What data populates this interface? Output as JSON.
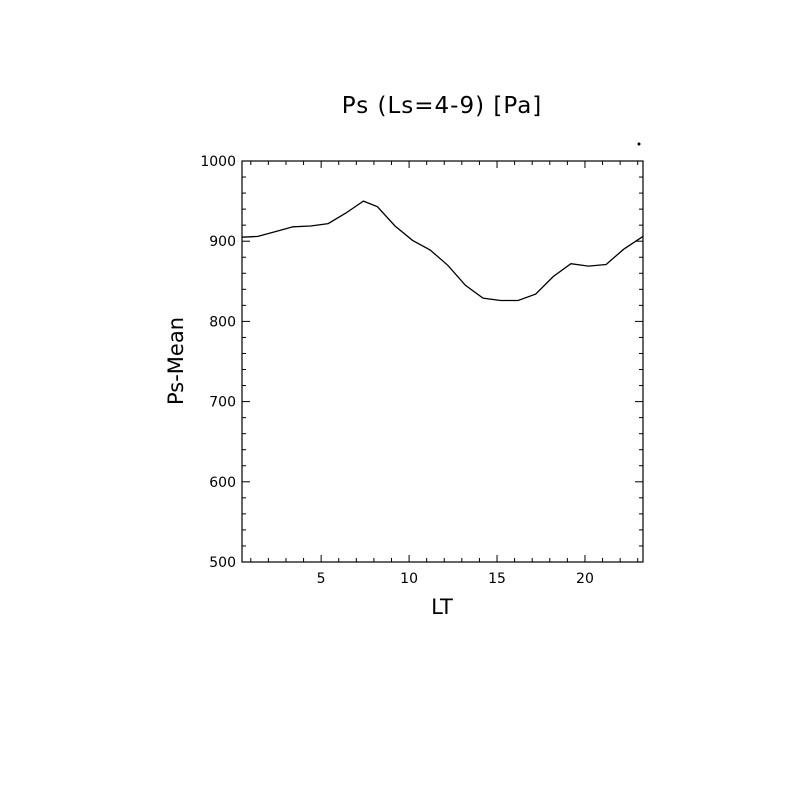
{
  "chart_data": {
    "type": "line",
    "title": "Ps (Ls=4-9) [Pa]",
    "xlabel": "LT",
    "ylabel": "Ps-Mean",
    "xlim": [
      0.5,
      23.3
    ],
    "ylim": [
      500,
      1000
    ],
    "x_ticks": [
      5,
      10,
      15,
      20
    ],
    "y_ticks": [
      500,
      600,
      700,
      800,
      900,
      1000
    ],
    "grid": false,
    "series": [
      {
        "x": [
          0.5,
          1.4,
          2.4,
          3.4,
          4.4,
          5.4,
          6.4,
          7.4,
          8.2,
          9.2,
          10.2,
          11.2,
          12.2,
          13.2,
          14.2,
          15.2,
          16.2,
          17.2,
          18.2,
          19.2,
          20.2,
          21.2,
          22.2,
          23.3
        ],
        "y": [
          905,
          906,
          912,
          918,
          919,
          922,
          935,
          950,
          943,
          919,
          901,
          889,
          870,
          845,
          829,
          826,
          826,
          834,
          856,
          872,
          869,
          871,
          890,
          906
        ]
      }
    ]
  }
}
